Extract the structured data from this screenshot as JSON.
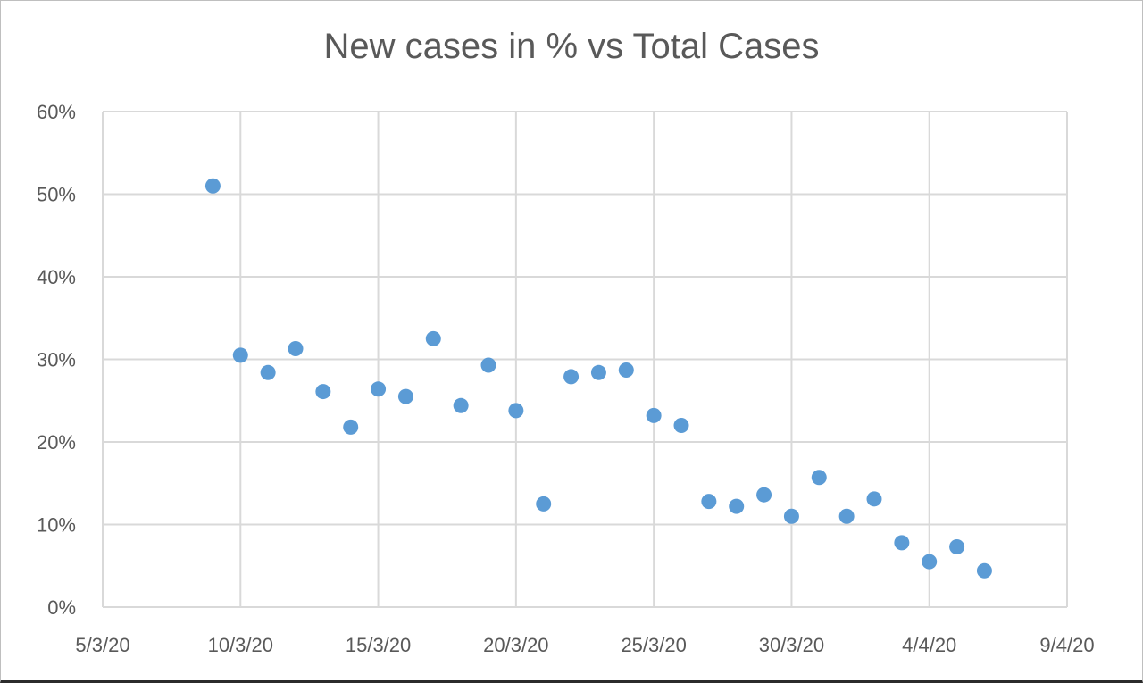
{
  "chart_data": {
    "type": "scatter",
    "title": "New cases in % vs Total Cases",
    "xlabel": "",
    "ylabel": "",
    "x_type": "date",
    "xlim": [
      "2020-03-05",
      "2020-04-09"
    ],
    "ylim": [
      0,
      0.6
    ],
    "x_tick_labels": [
      "5/3/20",
      "10/3/20",
      "15/3/20",
      "20/3/20",
      "25/3/20",
      "30/3/20",
      "4/4/20",
      "9/4/20"
    ],
    "x_tick_dates": [
      "2020-03-05",
      "2020-03-10",
      "2020-03-15",
      "2020-03-20",
      "2020-03-25",
      "2020-03-30",
      "2020-04-04",
      "2020-04-09"
    ],
    "y_ticks": [
      0,
      0.1,
      0.2,
      0.3,
      0.4,
      0.5,
      0.6
    ],
    "y_tick_labels": [
      "0%",
      "10%",
      "20%",
      "30%",
      "40%",
      "50%",
      "60%"
    ],
    "grid": true,
    "legend": "none",
    "marker_color": "#5b9bd5",
    "series": [
      {
        "points": [
          {
            "x": "2020-03-09",
            "y": 0.51
          },
          {
            "x": "2020-03-10",
            "y": 0.305
          },
          {
            "x": "2020-03-11",
            "y": 0.284
          },
          {
            "x": "2020-03-12",
            "y": 0.313
          },
          {
            "x": "2020-03-13",
            "y": 0.261
          },
          {
            "x": "2020-03-14",
            "y": 0.218
          },
          {
            "x": "2020-03-15",
            "y": 0.264
          },
          {
            "x": "2020-03-16",
            "y": 0.255
          },
          {
            "x": "2020-03-17",
            "y": 0.325
          },
          {
            "x": "2020-03-18",
            "y": 0.244
          },
          {
            "x": "2020-03-19",
            "y": 0.293
          },
          {
            "x": "2020-03-20",
            "y": 0.238
          },
          {
            "x": "2020-03-21",
            "y": 0.125
          },
          {
            "x": "2020-03-22",
            "y": 0.279
          },
          {
            "x": "2020-03-23",
            "y": 0.284
          },
          {
            "x": "2020-03-24",
            "y": 0.287
          },
          {
            "x": "2020-03-25",
            "y": 0.232
          },
          {
            "x": "2020-03-26",
            "y": 0.22
          },
          {
            "x": "2020-03-27",
            "y": 0.128
          },
          {
            "x": "2020-03-28",
            "y": 0.122
          },
          {
            "x": "2020-03-29",
            "y": 0.136
          },
          {
            "x": "2020-03-30",
            "y": 0.11
          },
          {
            "x": "2020-03-31",
            "y": 0.157
          },
          {
            "x": "2020-04-01",
            "y": 0.11
          },
          {
            "x": "2020-04-02",
            "y": 0.131
          },
          {
            "x": "2020-04-03",
            "y": 0.078
          },
          {
            "x": "2020-04-04",
            "y": 0.055
          },
          {
            "x": "2020-04-05",
            "y": 0.073
          },
          {
            "x": "2020-04-06",
            "y": 0.044
          }
        ]
      }
    ]
  }
}
